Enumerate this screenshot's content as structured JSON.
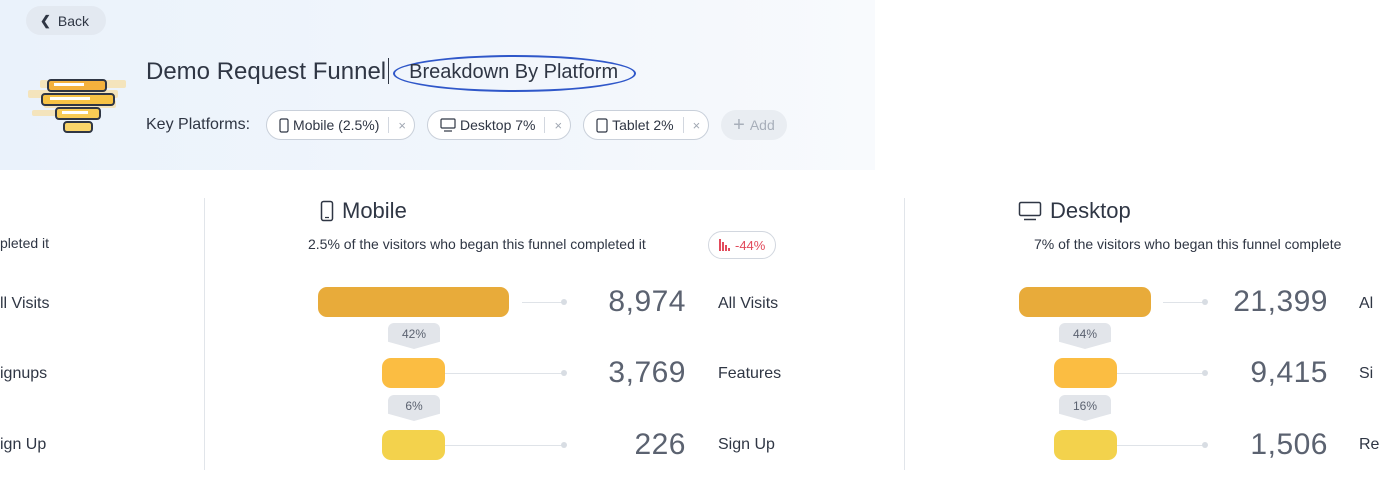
{
  "nav": {
    "back_label": "Back"
  },
  "header": {
    "title": "Demo Request Funnel",
    "subtitle": "Breakdown By Platform",
    "platforms_label": "Key Platforms:",
    "chips": [
      {
        "label": "Mobile (2.5%)",
        "icon": "mobile-icon"
      },
      {
        "label": "Desktop 7%",
        "icon": "desktop-icon"
      },
      {
        "label": "Tablet 2%",
        "icon": "tablet-icon"
      }
    ],
    "chip_remove_glyph": "×",
    "add_label": "Add"
  },
  "left_panel": {
    "subtitle": "pleted it",
    "steps": [
      "ll Visits",
      "ignups",
      "ign Up"
    ]
  },
  "mobile": {
    "title": "Mobile",
    "icon": "mobile-icon",
    "visitors_text": "2.5% of the visitors who began this funnel completed it",
    "delta": "-44%",
    "steps": [
      {
        "count": "8,974",
        "label": "All Visits"
      },
      {
        "count": "3,769",
        "label": "Features"
      },
      {
        "count": "226",
        "label": "Sign Up"
      }
    ],
    "conversions": [
      "42%",
      "6%"
    ]
  },
  "desktop": {
    "title": "Desktop",
    "icon": "desktop-icon",
    "visitors_text": "7% of the visitors who began this funnel complete",
    "steps": [
      {
        "count": "21,399",
        "label": "Al"
      },
      {
        "count": "9,415",
        "label": "Si"
      },
      {
        "count": "1,506",
        "label": "Re"
      }
    ],
    "conversions": [
      "44%",
      "16%"
    ]
  },
  "colors": {
    "bar_step1": "#e8ab3a",
    "bar_step2": "#fbbd42",
    "bar_step3": "#f3d24c",
    "accent_oval": "#2f57c9",
    "delta_red": "#e24b5c"
  }
}
